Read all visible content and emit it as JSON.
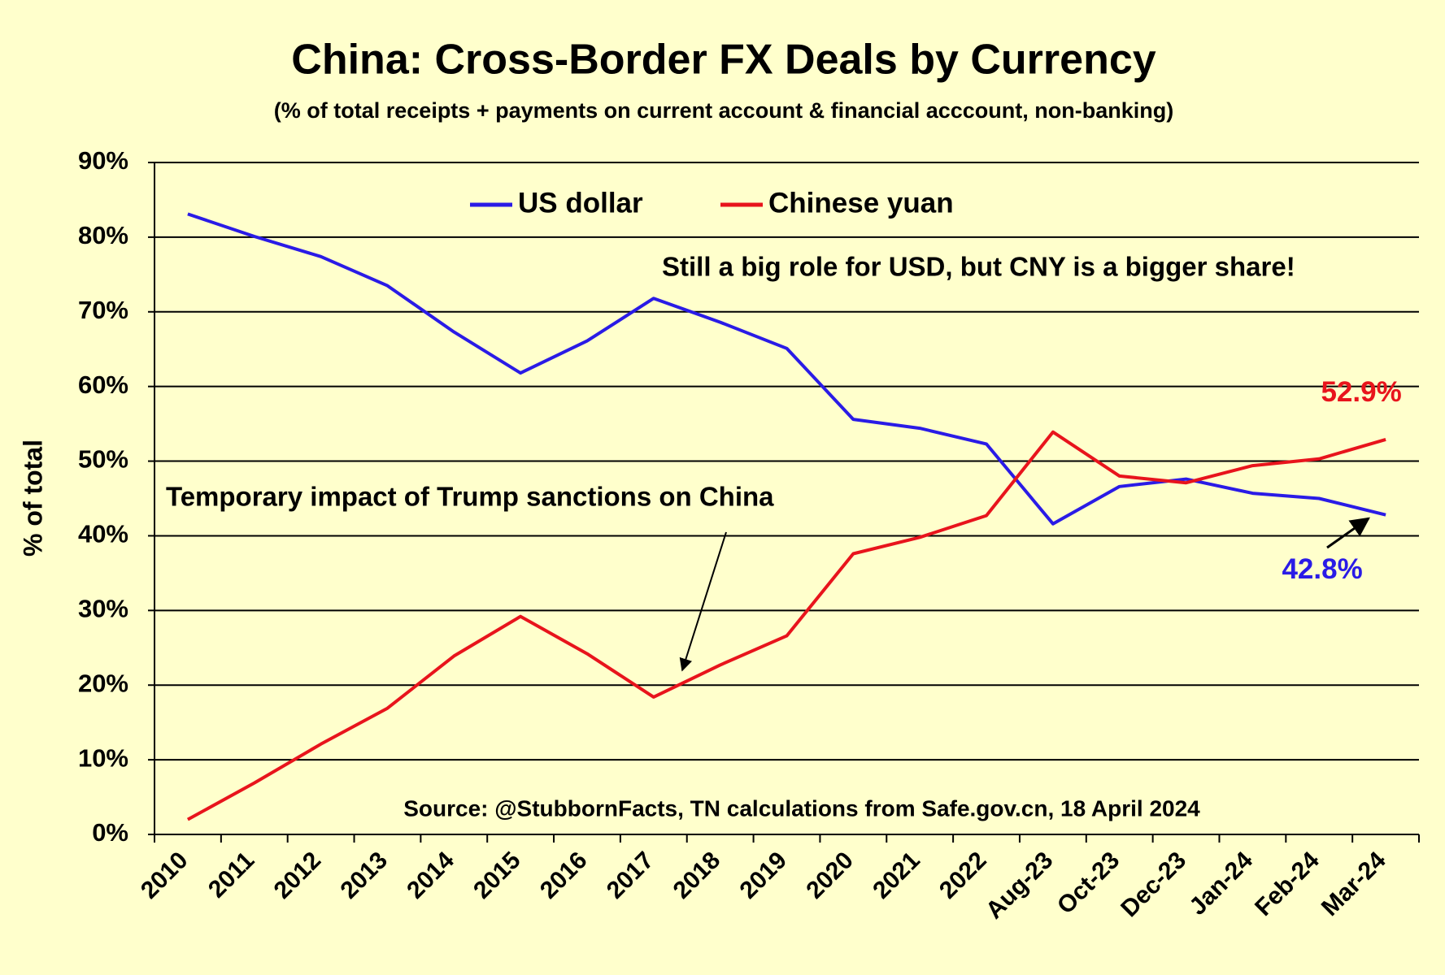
{
  "chart_data": {
    "type": "line",
    "title": "China: Cross-Border FX Deals by Currency",
    "subtitle": "(% of total receipts + payments on current account & financial acccount, non-banking)",
    "y_label": "% of total",
    "categories": [
      "2010",
      "2011",
      "2012",
      "2013",
      "2014",
      "2015",
      "2016",
      "2017",
      "2018",
      "2019",
      "2020",
      "2021",
      "2022",
      "Aug-23",
      "Oct-23",
      "Dec-23",
      "Jan-24",
      "Feb-24",
      "Mar-24"
    ],
    "series": [
      {
        "name": "US dollar",
        "color": "#2a1be6",
        "values": [
          83.1,
          80.1,
          77.4,
          73.5,
          67.3,
          61.8,
          66.1,
          71.8,
          68.6,
          65.1,
          55.6,
          54.4,
          52.3,
          41.6,
          46.6,
          47.6,
          45.7,
          45.0,
          42.8
        ],
        "value_labels": [
          null,
          null,
          null,
          null,
          null,
          null,
          null,
          null,
          null,
          null,
          null,
          null,
          null,
          null,
          null,
          null,
          null,
          null,
          "42.8%"
        ]
      },
      {
        "name": "Chinese yuan",
        "color": "#e8141c",
        "values": [
          2.0,
          6.9,
          12.1,
          16.9,
          23.9,
          29.2,
          24.2,
          18.4,
          22.7,
          26.6,
          37.6,
          39.8,
          42.7,
          53.9,
          48.0,
          47.1,
          49.4,
          50.3,
          52.9
        ],
        "value_labels": [
          null,
          null,
          null,
          null,
          null,
          null,
          null,
          null,
          null,
          null,
          null,
          null,
          null,
          null,
          null,
          null,
          null,
          null,
          "52.9%"
        ]
      }
    ],
    "ylim": [
      0,
      90
    ],
    "yticks": [
      {
        "value": 0,
        "label": "0%"
      },
      {
        "value": 10,
        "label": "10%"
      },
      {
        "value": 20,
        "label": "20%"
      },
      {
        "value": 30,
        "label": "30%"
      },
      {
        "value": 40,
        "label": "40%"
      },
      {
        "value": 50,
        "label": "50%"
      },
      {
        "value": 60,
        "label": "60%"
      },
      {
        "value": 70,
        "label": "70%"
      },
      {
        "value": 80,
        "label": "80%"
      },
      {
        "value": 90,
        "label": "90%"
      }
    ],
    "grid": true,
    "legend": "top",
    "annotations": [
      "Still a big role for USD, but CNY is a bigger share!",
      "Temporary impact of Trump sanctions on China",
      "Source: @StubbornFacts, TN calculations from Safe.gov.cn, 18 April 2024"
    ]
  }
}
